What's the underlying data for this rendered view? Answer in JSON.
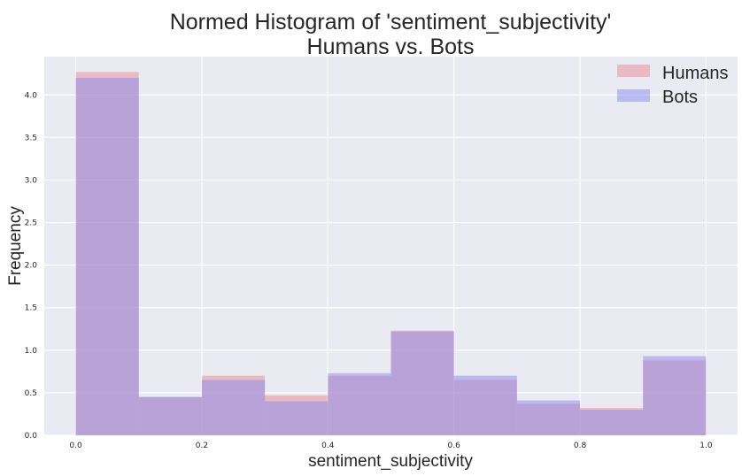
{
  "chart_data": {
    "type": "bar",
    "title": [
      "Normed Histogram of 'sentiment_subjectivity'",
      "Humans vs. Bots"
    ],
    "xlabel": "sentiment_subjectivity",
    "ylabel": "Frequency",
    "xlim": [
      -0.05,
      1.05
    ],
    "ylim": [
      0,
      4.45
    ],
    "x_ticks": [
      0.0,
      0.2,
      0.4,
      0.6,
      0.8,
      1.0
    ],
    "y_ticks": [
      0.0,
      0.5,
      1.0,
      1.5,
      2.0,
      2.5,
      3.0,
      3.5,
      4.0
    ],
    "x_tick_labels": [
      "0.0",
      "0.2",
      "0.4",
      "0.6",
      "0.8",
      "1.0"
    ],
    "y_tick_labels": [
      "0.0",
      "0.5",
      "1.0",
      "1.5",
      "2.0",
      "2.5",
      "3.0",
      "3.5",
      "4.0"
    ],
    "bin_edges": [
      0.0,
      0.1,
      0.2,
      0.3,
      0.4,
      0.5,
      0.6,
      0.7,
      0.8,
      0.9,
      1.0
    ],
    "grid": true,
    "legend_position": "top-right",
    "series": [
      {
        "name": "Humans",
        "color": "#e88a8f",
        "values": [
          4.27,
          0.45,
          0.7,
          0.47,
          0.7,
          1.23,
          0.65,
          0.37,
          0.32,
          0.88
        ]
      },
      {
        "name": "Bots",
        "color": "#8a8af0",
        "values": [
          4.2,
          0.45,
          0.65,
          0.4,
          0.73,
          1.22,
          0.7,
          0.41,
          0.3,
          0.93
        ]
      }
    ],
    "colors": {
      "background": "#eaeaf2",
      "grid": "#ffffff",
      "overlap": "#b894cc"
    }
  }
}
